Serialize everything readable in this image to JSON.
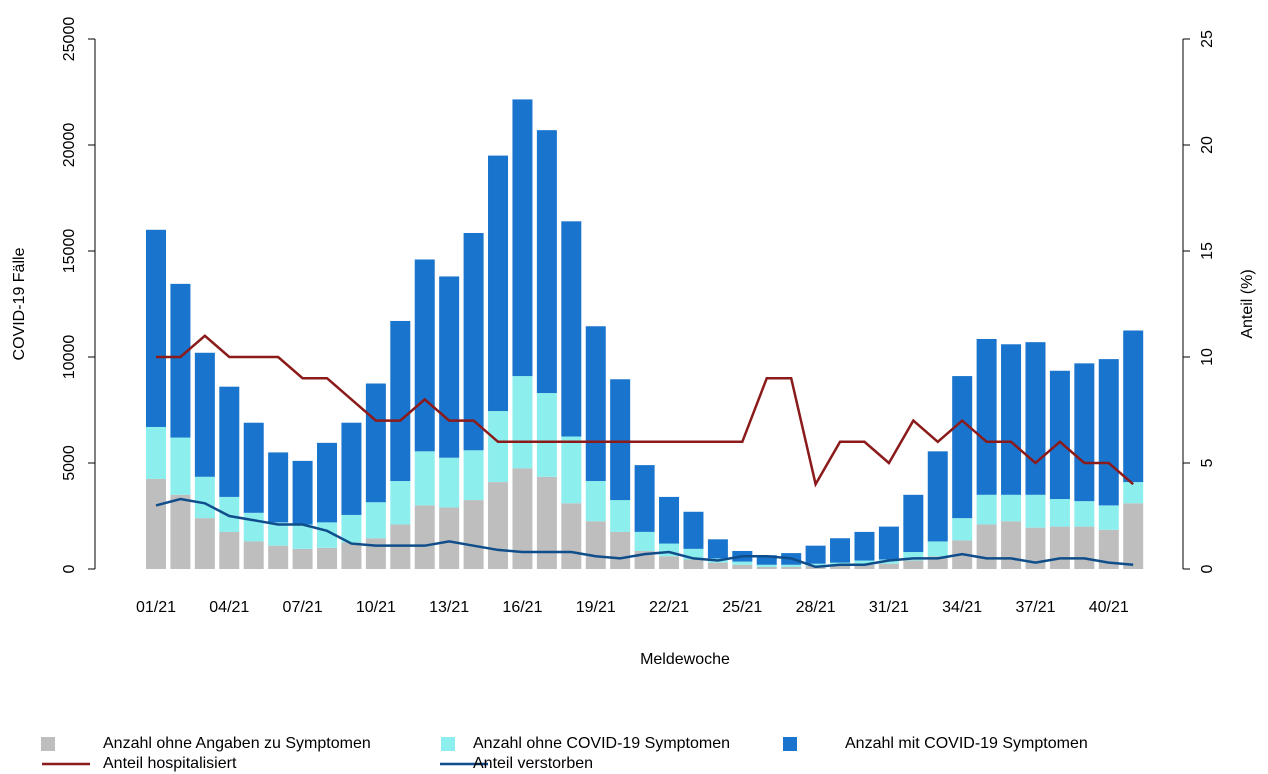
{
  "chart_data": {
    "type": "bar",
    "stacked": true,
    "x_label": "Meldewoche",
    "y_label": "COVID-19 Fälle",
    "y2_label": "Anteil (%)",
    "categories": [
      "01/21",
      null,
      null,
      "04/21",
      null,
      null,
      "07/21",
      null,
      null,
      "10/21",
      null,
      null,
      "13/21",
      null,
      null,
      "16/21",
      null,
      null,
      "19/21",
      null,
      null,
      "22/21",
      null,
      null,
      "25/21",
      null,
      null,
      "28/21",
      null,
      null,
      "31/21",
      null,
      null,
      "34/21",
      null,
      null,
      "37/21",
      null,
      null,
      "40/21",
      null
    ],
    "ylim": [
      0,
      25000
    ],
    "yticks": [
      0,
      5000,
      10000,
      15000,
      20000,
      25000
    ],
    "y2lim": [
      0,
      25
    ],
    "y2ticks": [
      0,
      5,
      10,
      15,
      20,
      25
    ],
    "series": [
      {
        "name": "Anzahl ohne Angaben zu Symptomen",
        "type": "bar",
        "color": "#bebebe",
        "values": [
          4250,
          3500,
          2400,
          1750,
          1300,
          1100,
          950,
          1000,
          1250,
          1450,
          2100,
          3000,
          2900,
          3250,
          4100,
          4750,
          4350,
          3100,
          2250,
          1750,
          850,
          600,
          450,
          300,
          200,
          100,
          100,
          150,
          150,
          200,
          250,
          400,
          600,
          1350,
          2100,
          2250,
          1950,
          2000,
          2000,
          1850,
          3100
        ]
      },
      {
        "name": "Anzahl ohne COVID-19 Symptomen",
        "type": "bar",
        "color": "#8deeee",
        "values": [
          2450,
          2700,
          1950,
          1650,
          1350,
          1100,
          1150,
          1200,
          1300,
          1700,
          2050,
          2550,
          2350,
          2350,
          3350,
          4350,
          3950,
          3150,
          1900,
          1500,
          900,
          600,
          500,
          200,
          150,
          100,
          100,
          100,
          150,
          200,
          200,
          400,
          700,
          1050,
          1400,
          1250,
          1550,
          1300,
          1200,
          1150,
          1000
        ]
      },
      {
        "name": "Anzahl mit COVID-19 Symptomen",
        "type": "bar",
        "color": "#1874cd",
        "values": [
          9300,
          7250,
          5850,
          5200,
          4250,
          3300,
          3000,
          3750,
          4350,
          5600,
          7550,
          9050,
          8550,
          10250,
          12050,
          13050,
          12400,
          10150,
          7300,
          5700,
          3150,
          2200,
          1750,
          900,
          500,
          450,
          550,
          850,
          1150,
          1350,
          1550,
          2700,
          4250,
          6700,
          7350,
          7100,
          7200,
          6050,
          6500,
          6900,
          7150
        ]
      },
      {
        "name": "Anteil hospitalisiert",
        "type": "line",
        "axis": "y2",
        "color": "#8b1a1a",
        "values": [
          10,
          10,
          11,
          10,
          10,
          10,
          9,
          9,
          8,
          7,
          7,
          8,
          7,
          7,
          6,
          6,
          6,
          6,
          6,
          6,
          6,
          6,
          6,
          6,
          6,
          9,
          9,
          4,
          6,
          6,
          5,
          7,
          6,
          7,
          6,
          6,
          5,
          6,
          5,
          5,
          4
        ]
      },
      {
        "name": "Anteil verstorben",
        "type": "line",
        "axis": "y2",
        "color": "#104e8b",
        "values": [
          3.0,
          3.3,
          3.1,
          2.5,
          2.3,
          2.1,
          2.1,
          1.8,
          1.2,
          1.1,
          1.1,
          1.1,
          1.3,
          1.1,
          0.9,
          0.8,
          0.8,
          0.8,
          0.6,
          0.5,
          0.7,
          0.8,
          0.5,
          0.4,
          0.6,
          0.6,
          0.5,
          0.1,
          0.2,
          0.2,
          0.4,
          0.5,
          0.5,
          0.7,
          0.5,
          0.5,
          0.3,
          0.5,
          0.5,
          0.3,
          0.2
        ]
      }
    ]
  }
}
